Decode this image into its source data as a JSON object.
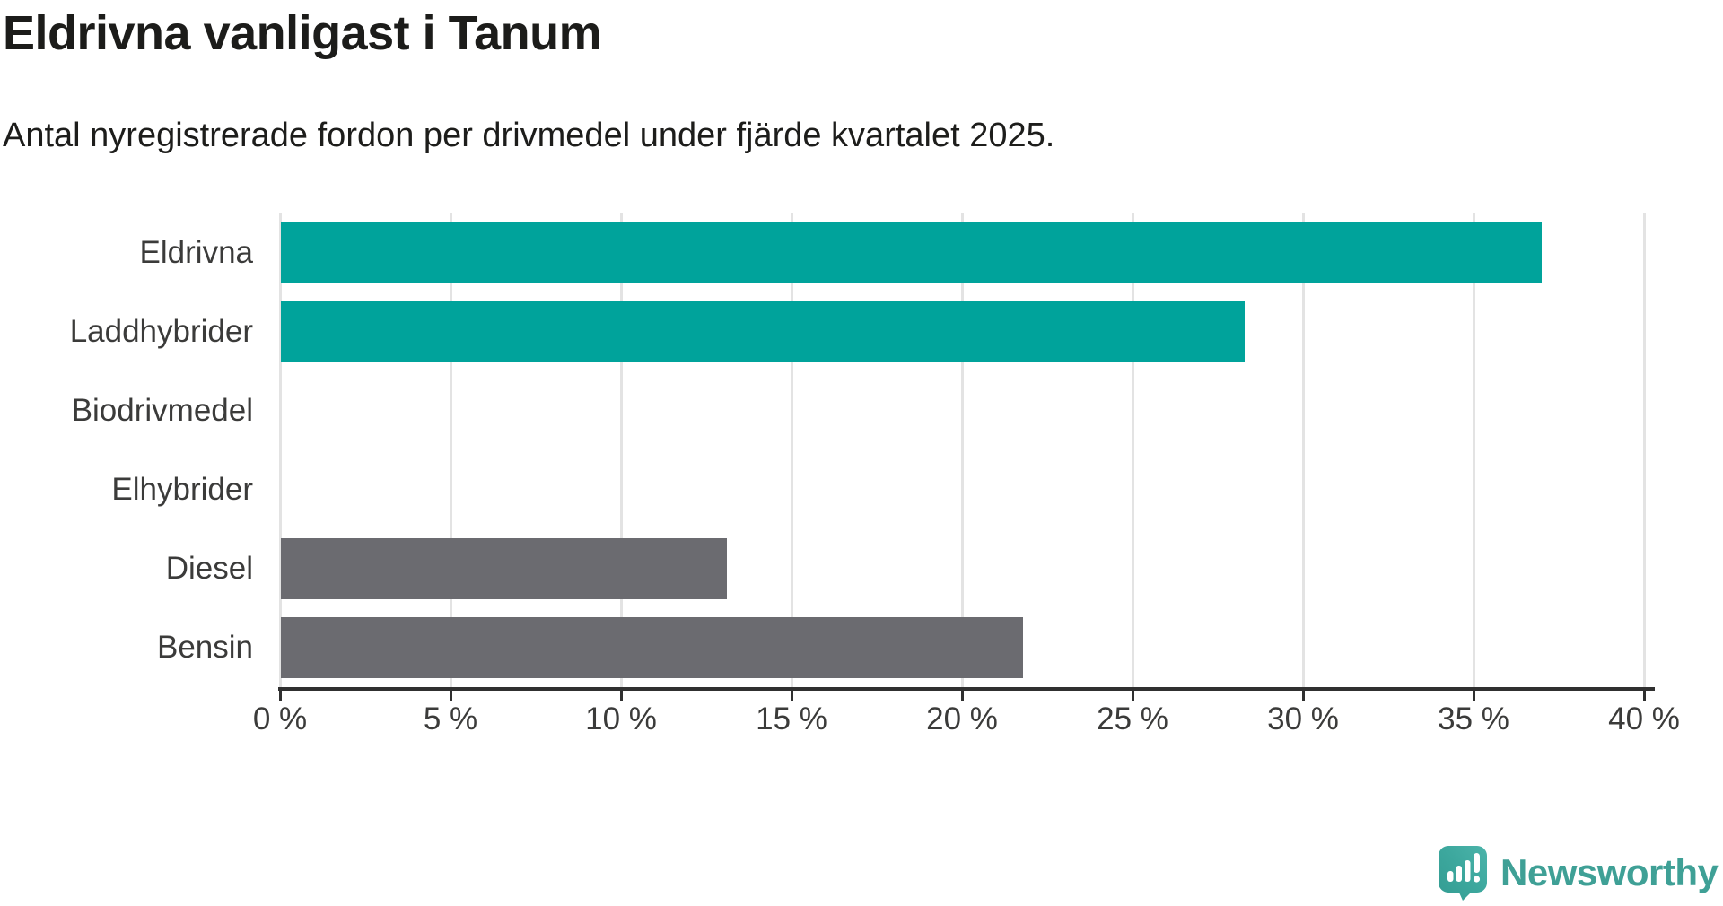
{
  "header": {
    "title": "Eldrivna vanligast i Tanum",
    "subtitle": "Antal nyregistrerade fordon per drivmedel under fjärde kvartalet 2025."
  },
  "chart_data": {
    "type": "bar",
    "orientation": "horizontal",
    "title": "Eldrivna vanligast i Tanum",
    "subtitle": "Antal nyregistrerade fordon per drivmedel under fjärde kvartalet 2025.",
    "categories": [
      "Eldrivna",
      "Laddhybrider",
      "Biodrivmedel",
      "Elhybrider",
      "Diesel",
      "Bensin"
    ],
    "values": [
      37.0,
      28.3,
      0,
      0,
      13.1,
      21.8
    ],
    "unit": "%",
    "xlim": [
      0,
      40
    ],
    "xticks": [
      0,
      5,
      10,
      15,
      20,
      25,
      30,
      35,
      40
    ],
    "xtick_labels": [
      "0 %",
      "5 %",
      "10 %",
      "15 %",
      "20 %",
      "25 %",
      "30 %",
      "35 %",
      "40 %"
    ],
    "bar_colors": [
      "#00a39b",
      "#00a39b",
      "#00a39b",
      "#00a39b",
      "#6b6b70",
      "#6b6b70"
    ],
    "grid": "vertical",
    "legend": "none"
  },
  "colors": {
    "accent_teal": "#00a39b",
    "neutral_gray": "#6b6b70",
    "gridline": "#e3e3e3",
    "axis": "#303030",
    "text_dark": "#1c1c1a",
    "text_label": "#3b3b3a",
    "logo_teal": "#3fa096"
  },
  "branding": {
    "logo_text": "Newsworthy",
    "logo_icon": "newsworthy-speech-bubble-barchart-icon"
  }
}
